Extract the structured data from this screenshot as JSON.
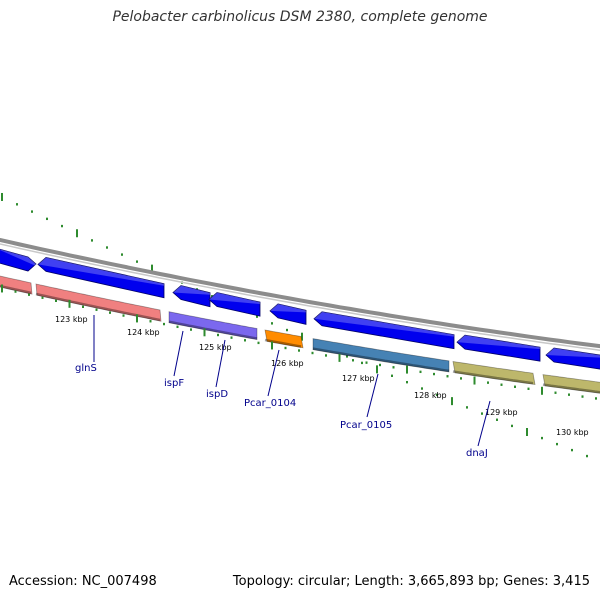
{
  "title": "Pelobacter carbinolicus DSM 2380, complete genome",
  "footer": {
    "accession": "Accession: NC_007498",
    "summary": "Topology: circular; Length: 3,665,893 bp; Genes: 3,415"
  },
  "colors": {
    "backbone": "#8c8c8c",
    "cds": "#0000ee",
    "tick": "#2e8b2e",
    "gene_label": "#00008b"
  },
  "kbp_labels": [
    {
      "text": "123 kbp",
      "position_kbp": 123
    },
    {
      "text": "124 kbp",
      "position_kbp": 124
    },
    {
      "text": "125 kbp",
      "position_kbp": 125
    },
    {
      "text": "126 kbp",
      "position_kbp": 126
    },
    {
      "text": "127 kbp",
      "position_kbp": 127
    },
    {
      "text": "128 kbp",
      "position_kbp": 128
    },
    {
      "text": "129 kbp",
      "position_kbp": 129
    },
    {
      "text": "130 kbp",
      "position_kbp": 130
    }
  ],
  "genes": [
    {
      "name": "glnS",
      "color": "#f08080"
    },
    {
      "name": "ispF",
      "color": "#7b68ee"
    },
    {
      "name": "ispD",
      "color": "#7b68ee"
    },
    {
      "name": "Pcar_0104",
      "color": "#ff8c00"
    },
    {
      "name": "Pcar_0105",
      "color": "#4682b4"
    },
    {
      "name": "dnaJ",
      "color": "#bdb76b"
    }
  ]
}
